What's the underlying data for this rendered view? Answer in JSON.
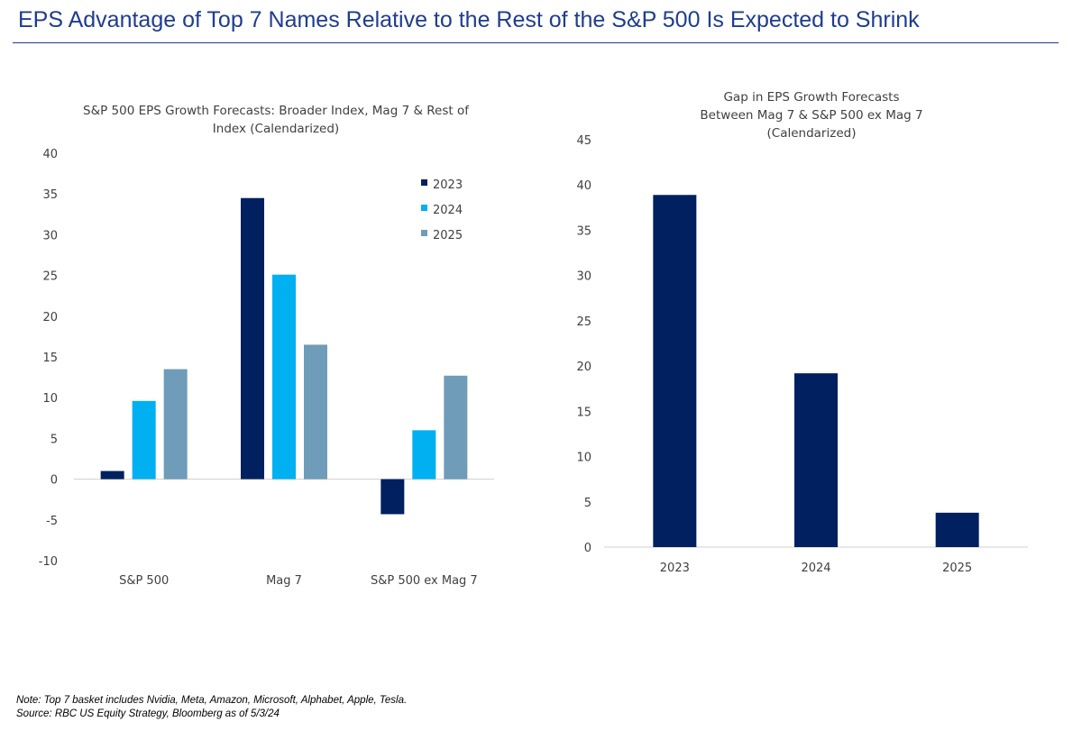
{
  "page": {
    "title": "EPS Advantage of Top 7 Names Relative to the Rest of the S&P 500 Is Expected to Shrink",
    "note": "Note: Top 7 basket includes Nvidia, Meta, Amazon, Microsoft, Alphabet, Apple, Tesla.",
    "source": "Source: RBC US Equity Strategy, Bloomberg as of 5/3/24"
  },
  "colors": {
    "2023": "#002060",
    "2024": "#00b0f0",
    "2025": "#6f9cb8",
    "title": "#1f3d8f"
  },
  "chart_data": [
    {
      "type": "bar",
      "title_lines": [
        "S&P 500 EPS Growth Forecasts: Broader Index, Mag 7 & Rest of",
        "Index (Calendarized)"
      ],
      "categories": [
        "S&P 500",
        "Mag 7",
        "S&P 500 ex Mag 7"
      ],
      "series": [
        {
          "name": "2023",
          "values": [
            1.0,
            34.5,
            -4.3
          ]
        },
        {
          "name": "2024",
          "values": [
            9.6,
            25.1,
            6.0
          ]
        },
        {
          "name": "2025",
          "values": [
            13.5,
            16.5,
            12.7
          ]
        }
      ],
      "ylim": [
        -10,
        40
      ],
      "yticks": [
        40,
        35,
        30,
        25,
        20,
        15,
        10,
        5,
        0,
        -5,
        -10
      ],
      "legend": "top-right",
      "grid": false
    },
    {
      "type": "bar",
      "title_lines": [
        "Gap in EPS Growth Forecasts",
        "Between  Mag 7 & S&P 500 ex Mag 7",
        "(Calendarized)"
      ],
      "categories": [
        "2023",
        "2024",
        "2025"
      ],
      "values": [
        38.9,
        19.2,
        3.8
      ],
      "ylim": [
        0,
        45
      ],
      "yticks": [
        45,
        40,
        35,
        30,
        25,
        20,
        15,
        10,
        5,
        0
      ],
      "grid": false
    }
  ]
}
